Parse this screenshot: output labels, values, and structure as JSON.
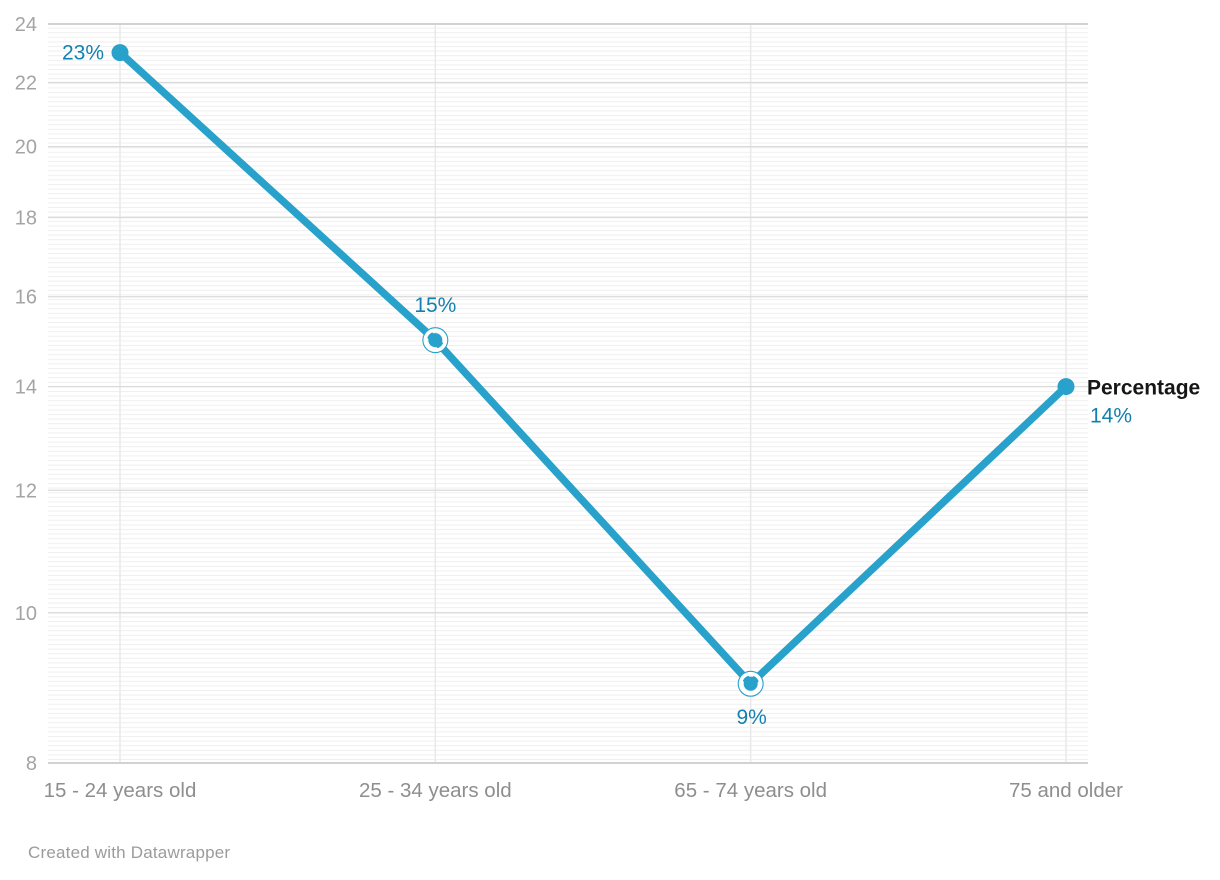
{
  "chart_data": {
    "type": "line",
    "title": "",
    "xlabel": "",
    "ylabel": "",
    "categories": [
      "15 - 24 years old",
      "25 - 34 years old",
      "65 - 74 years old",
      "75 and older"
    ],
    "series": [
      {
        "name": "Percentage",
        "values": [
          23,
          15,
          9,
          14
        ]
      }
    ],
    "points": [
      {
        "category": "15 - 24 years old",
        "value": 23,
        "label": "23%",
        "label_pos": "left",
        "marker": "solid"
      },
      {
        "category": "25 - 34 years old",
        "value": 15,
        "label": "15%",
        "label_pos": "above",
        "marker": "ring"
      },
      {
        "category": "65 - 74 years old",
        "value": 9,
        "label": "9%",
        "label_pos": "below",
        "marker": "ring"
      },
      {
        "category": "75 and older",
        "value": 14,
        "label": "14%",
        "label_pos": "right-below",
        "marker": "solid"
      }
    ],
    "y_ticks": [
      8,
      10,
      12,
      14,
      16,
      18,
      20,
      22,
      24
    ],
    "ylim": [
      8,
      24
    ],
    "y_scale": "log",
    "grid": true,
    "legend_position": "end-of-line",
    "colors": {
      "line": "#28a1cb",
      "value_label": "#1381b0",
      "series_label": "#161616",
      "y_tick": "#a4a4a4",
      "x_tick": "#8e8e8e",
      "grid_major": "#dadada",
      "grid_edge": "#d2d2d2",
      "grid_vertical": "#e9e9e9",
      "grid_minor": "#efefef",
      "credit": "#9b9b9b"
    }
  },
  "footer": {
    "credit": "Created with Datawrapper"
  }
}
